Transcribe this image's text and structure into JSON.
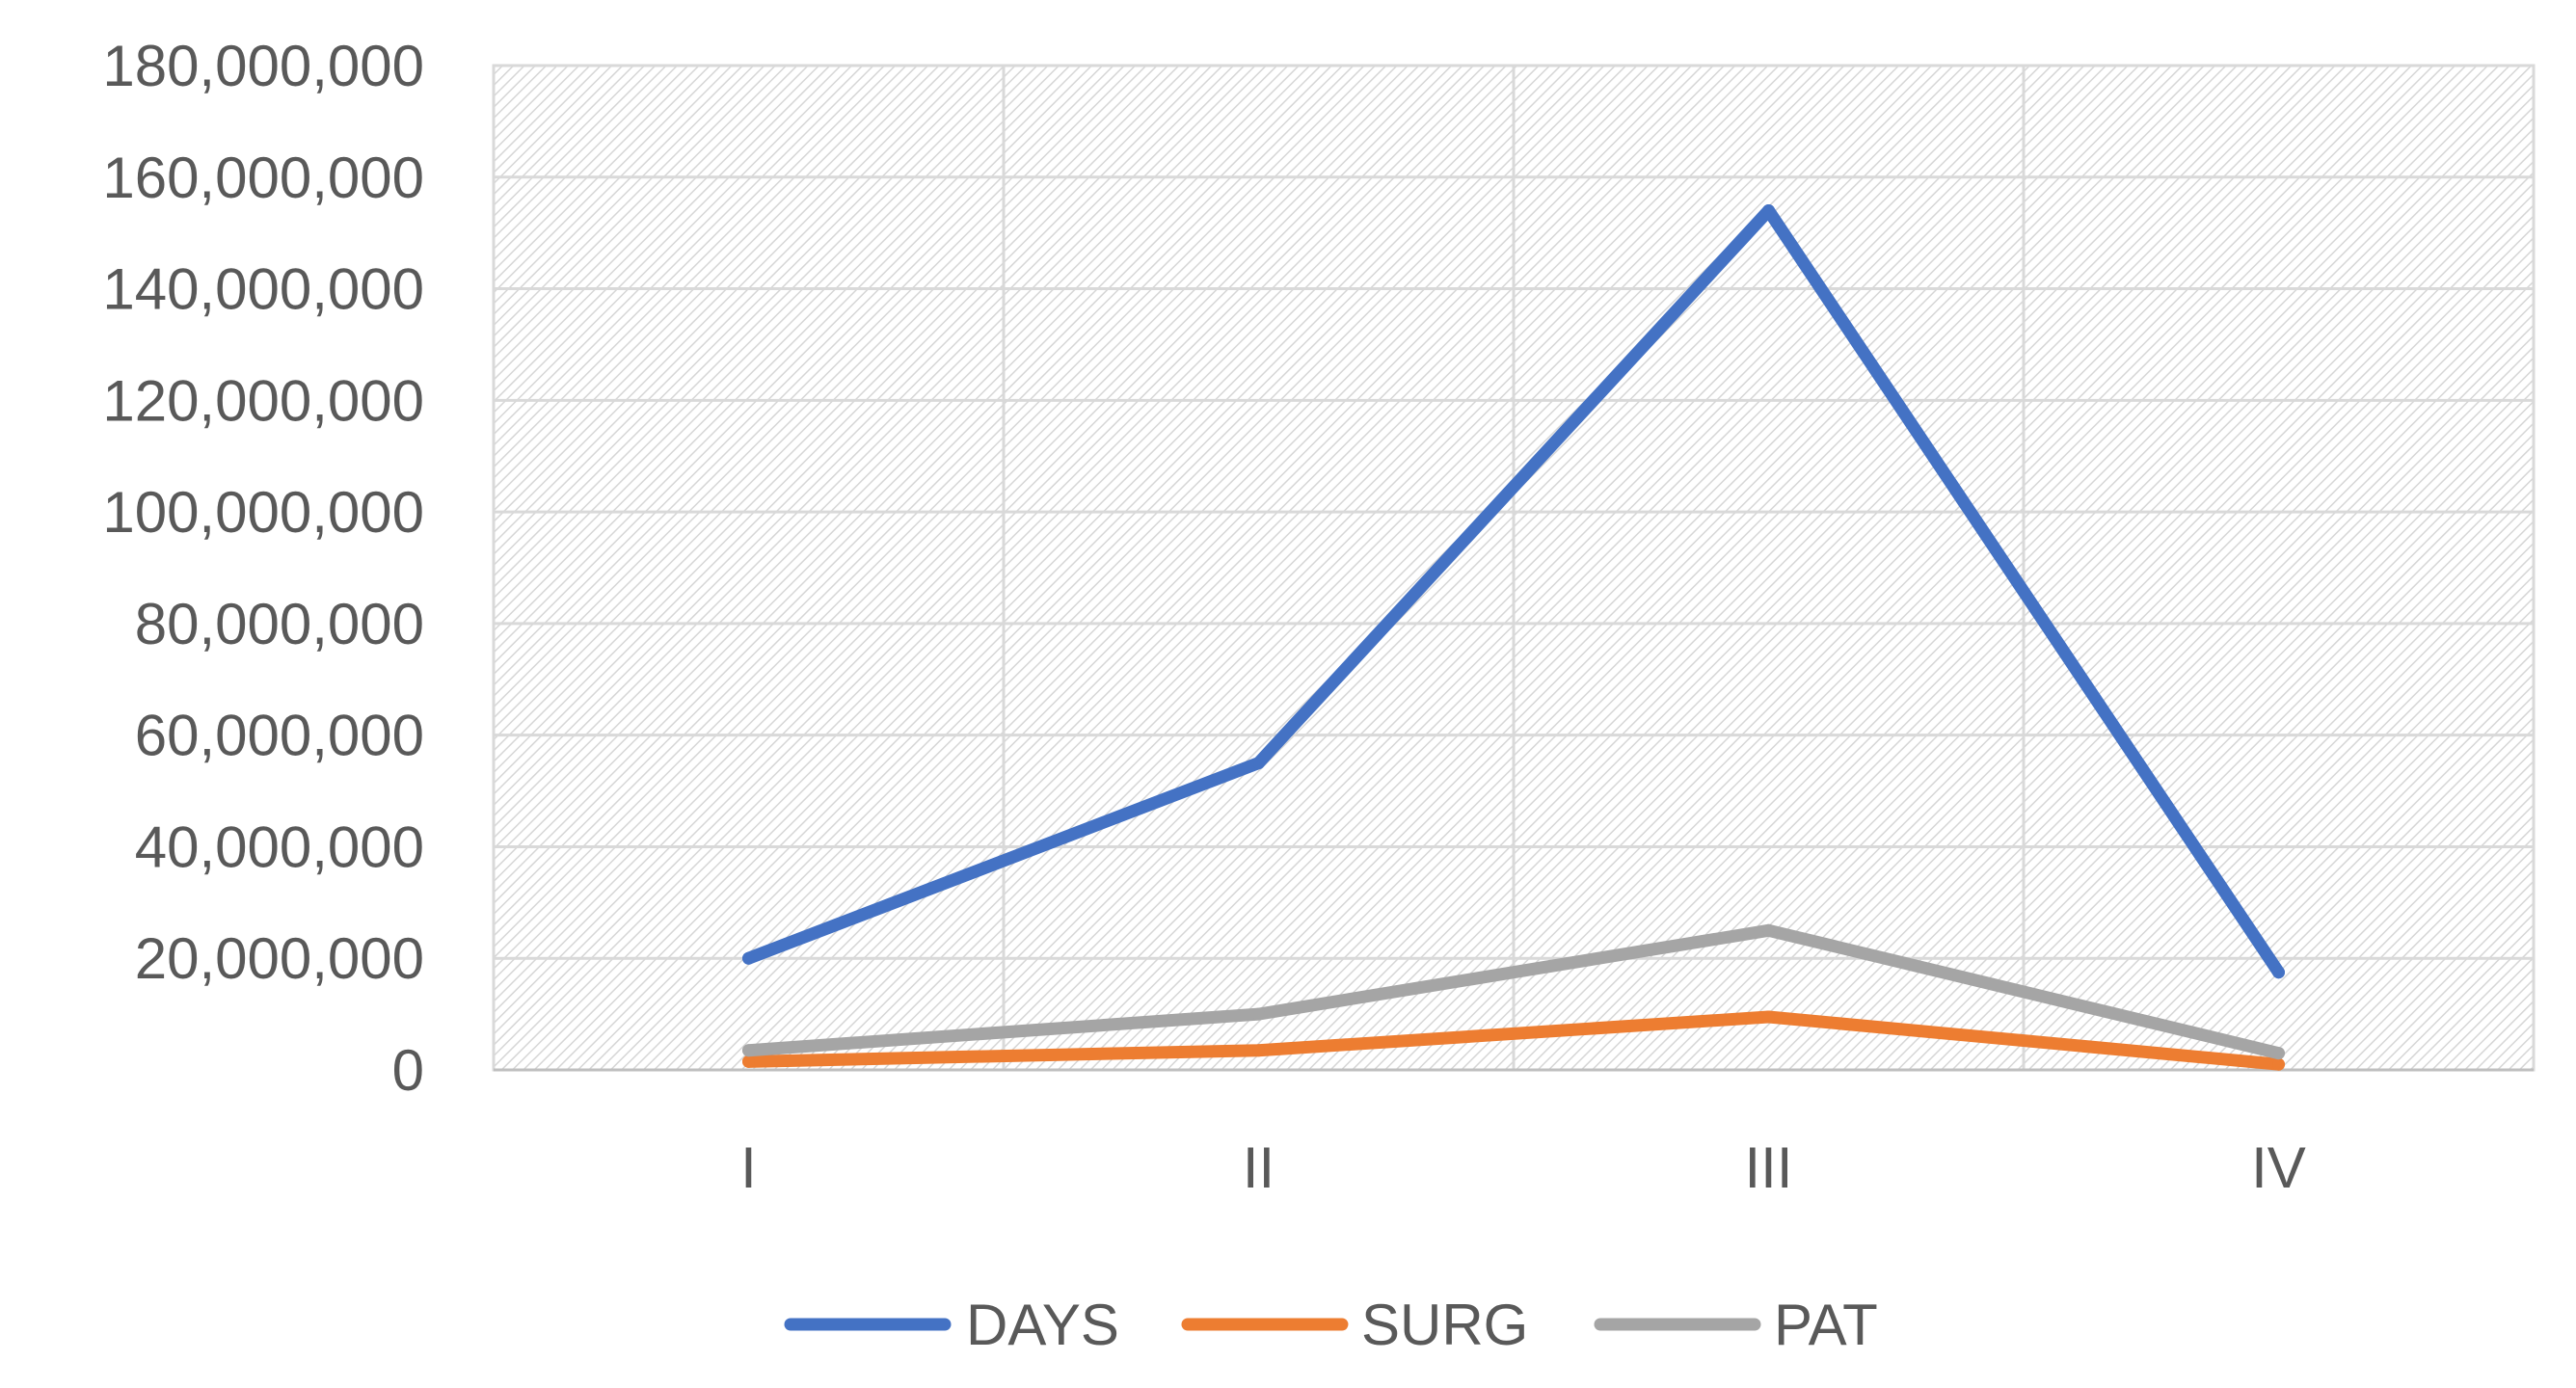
{
  "chart_data": {
    "type": "line",
    "title": "",
    "xlabel": "",
    "ylabel": "",
    "categories": [
      "I",
      "II",
      "III",
      "IV"
    ],
    "ylim": [
      0,
      180000000
    ],
    "yticks": [
      0,
      20000000,
      40000000,
      60000000,
      80000000,
      100000000,
      120000000,
      140000000,
      160000000,
      180000000
    ],
    "ytick_labels": [
      "0",
      "20,000,000",
      "40,000,000",
      "60,000,000",
      "80,000,000",
      "100,000,000",
      "120,000,000",
      "140,000,000",
      "160,000,000",
      "180,000,000"
    ],
    "grid": true,
    "legend_position": "bottom",
    "series": [
      {
        "name": "DAYS",
        "color": "#4472C4",
        "values": [
          20000000,
          55000000,
          154000000,
          17500000
        ]
      },
      {
        "name": "SURG",
        "color": "#ED7D31",
        "values": [
          1500000,
          3500000,
          9500000,
          1000000
        ]
      },
      {
        "name": "PAT",
        "color": "#A5A5A5",
        "values": [
          3500000,
          10000000,
          25000000,
          3000000
        ]
      }
    ]
  }
}
